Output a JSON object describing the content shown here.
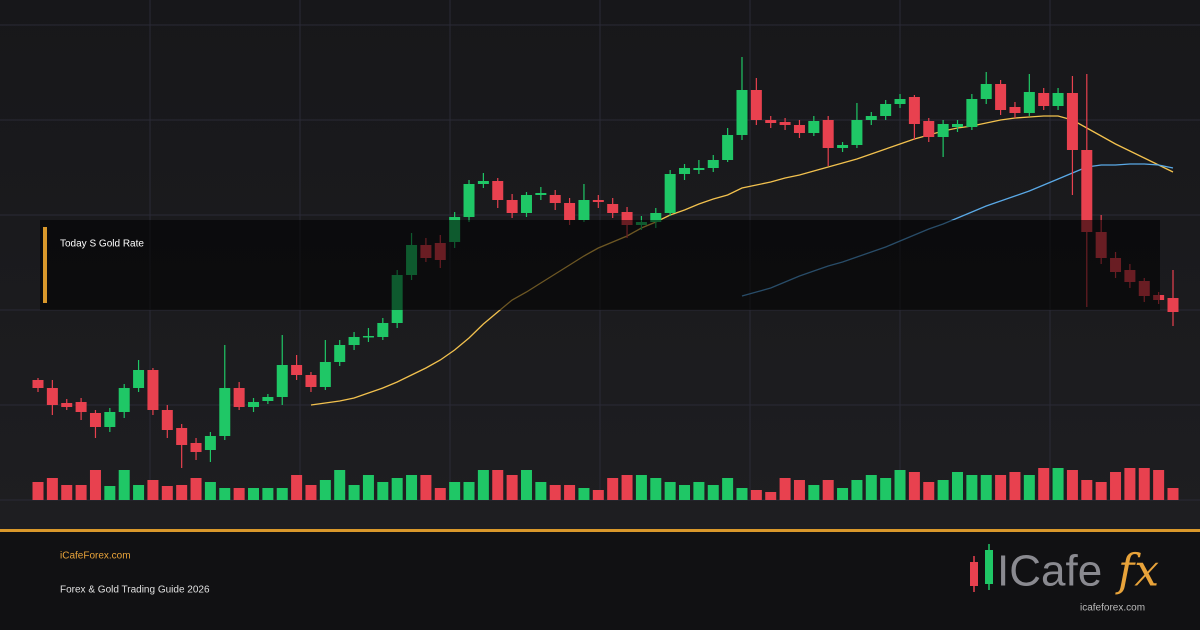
{
  "overlay_label": "Today S Gold Rate",
  "footer": {
    "site": "iCafeForex.com",
    "tagline": "Forex & Gold Trading Guide 2026"
  },
  "logo": {
    "text": "ICafe",
    "accent": "fx",
    "url": "icafeforex.com"
  },
  "chart_data": {
    "type": "candlestick",
    "up_color": "#1fc766",
    "down_color": "#e8414f",
    "ylim": [
      0,
      500
    ],
    "volume_ylim": [
      0,
      100
    ],
    "open": [
      120,
      112,
      97,
      98,
      87,
      73,
      88,
      112,
      130,
      90,
      72,
      57,
      50,
      64,
      112,
      93,
      99,
      103,
      135,
      125,
      113,
      138,
      155,
      163,
      163,
      177,
      225,
      255,
      257,
      258,
      283,
      316,
      319,
      300,
      287,
      305,
      305,
      297,
      280,
      300,
      296,
      288,
      275,
      278,
      287,
      326,
      330,
      332,
      340,
      365,
      410,
      380,
      378,
      375,
      367,
      380,
      352,
      355,
      380,
      384,
      396,
      403,
      379,
      363,
      373,
      373,
      401,
      416,
      393,
      387,
      407,
      394,
      407,
      350,
      268,
      242,
      230,
      219,
      205,
      202
    ],
    "high": [
      122,
      120,
      101,
      102,
      90,
      92,
      116,
      140,
      132,
      95,
      76,
      62,
      68,
      155,
      118,
      102,
      106,
      165,
      145,
      128,
      160,
      160,
      168,
      172,
      182,
      230,
      267,
      262,
      265,
      288,
      320,
      327,
      322,
      306,
      308,
      313,
      310,
      302,
      316,
      305,
      302,
      293,
      284,
      292,
      330,
      336,
      340,
      345,
      372,
      443,
      422,
      384,
      382,
      380,
      384,
      384,
      358,
      397,
      388,
      400,
      406,
      405,
      382,
      380,
      380,
      406,
      428,
      420,
      398,
      426,
      412,
      412,
      424,
      426,
      285,
      248,
      236,
      222,
      208,
      230
    ],
    "low": [
      108,
      85,
      90,
      80,
      62,
      68,
      82,
      108,
      85,
      62,
      32,
      40,
      38,
      60,
      90,
      88,
      96,
      95,
      120,
      108,
      110,
      134,
      150,
      158,
      160,
      172,
      220,
      238,
      232,
      252,
      278,
      312,
      292,
      282,
      283,
      300,
      290,
      275,
      278,
      292,
      282,
      262,
      270,
      272,
      284,
      320,
      326,
      328,
      338,
      360,
      375,
      372,
      370,
      362,
      364,
      334,
      348,
      352,
      375,
      380,
      392,
      360,
      358,
      343,
      368,
      370,
      396,
      385,
      382,
      384,
      390,
      390,
      305,
      193,
      236,
      222,
      212,
      198,
      196,
      174
    ],
    "close": [
      112,
      95,
      93,
      88,
      73,
      88,
      112,
      130,
      90,
      70,
      55,
      48,
      64,
      112,
      93,
      98,
      103,
      135,
      125,
      113,
      138,
      155,
      163,
      164,
      177,
      225,
      255,
      242,
      240,
      283,
      316,
      319,
      300,
      287,
      305,
      307,
      297,
      280,
      300,
      298,
      287,
      275,
      278,
      287,
      326,
      332,
      332,
      340,
      365,
      410,
      380,
      377,
      375,
      367,
      379,
      352,
      355,
      380,
      384,
      396,
      401,
      376,
      363,
      376,
      376,
      401,
      416,
      390,
      387,
      408,
      394,
      407,
      350,
      268,
      242,
      228,
      218,
      204,
      200,
      188
    ],
    "volume": [
      18,
      22,
      15,
      15,
      30,
      14,
      30,
      15,
      20,
      14,
      15,
      22,
      18,
      12,
      12,
      12,
      12,
      12,
      25,
      15,
      20,
      30,
      15,
      25,
      18,
      22,
      25,
      25,
      12,
      18,
      18,
      30,
      30,
      25,
      30,
      18,
      15,
      15,
      12,
      10,
      22,
      25,
      25,
      22,
      18,
      15,
      18,
      15,
      22,
      12,
      10,
      8,
      22,
      20,
      15,
      20,
      12,
      20,
      25,
      22,
      30,
      28,
      18,
      20,
      28,
      25,
      25,
      25,
      28,
      25,
      32,
      32,
      30,
      20,
      18,
      28,
      32,
      32,
      30,
      12
    ],
    "series": [
      {
        "color": "#f2c14e",
        "values": [
          null,
          null,
          null,
          null,
          null,
          null,
          null,
          null,
          null,
          null,
          null,
          null,
          null,
          null,
          null,
          null,
          null,
          null,
          null,
          95,
          97,
          99,
          102,
          107,
          112,
          118,
          125,
          132,
          140,
          150,
          162,
          176,
          188,
          200,
          208,
          217,
          226,
          235,
          244,
          252,
          258,
          264,
          272,
          278,
          285,
          290,
          296,
          301,
          305,
          312,
          315,
          318,
          322,
          325,
          329,
          333,
          337,
          341,
          346,
          351,
          356,
          361,
          365,
          369,
          372,
          374,
          377,
          380,
          382,
          383,
          384,
          384,
          380,
          372,
          364,
          356,
          349,
          342,
          335,
          328
        ]
      },
      {
        "color": "#5aa9e6",
        "values": [
          null,
          null,
          null,
          null,
          null,
          null,
          null,
          null,
          null,
          null,
          null,
          null,
          null,
          null,
          null,
          null,
          null,
          null,
          null,
          null,
          null,
          null,
          null,
          null,
          null,
          null,
          null,
          null,
          null,
          null,
          null,
          null,
          null,
          null,
          null,
          null,
          null,
          null,
          null,
          null,
          null,
          null,
          null,
          null,
          null,
          null,
          null,
          null,
          null,
          204,
          208,
          212,
          218,
          224,
          229,
          234,
          238,
          243,
          248,
          253,
          259,
          265,
          271,
          276,
          282,
          288,
          294,
          299,
          304,
          309,
          315,
          321,
          327,
          333,
          335,
          335,
          336,
          336,
          335,
          332
        ]
      }
    ]
  }
}
